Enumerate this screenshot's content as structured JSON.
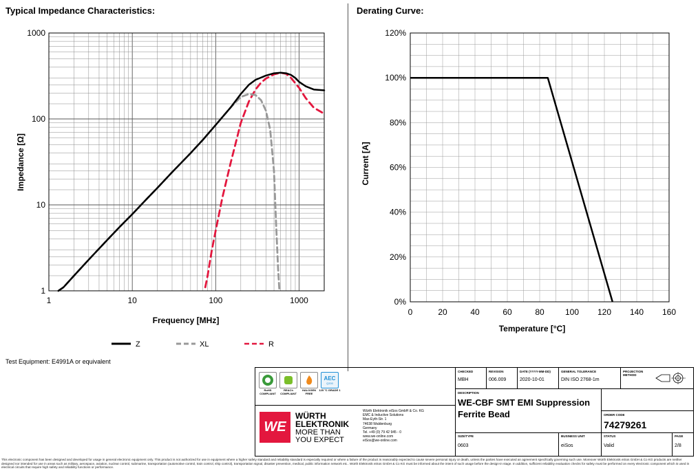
{
  "left_section": {
    "title": "Typical Impedance Characteristics:"
  },
  "right_section": {
    "title": "Derating Curve:"
  },
  "test_equipment": "Test Equipment: E4991A or equivalent",
  "chart_data": [
    {
      "type": "line",
      "title": "Typical Impedance Characteristics:",
      "xlabel": "Frequency [MHz]",
      "ylabel": "Impedance [Ω]",
      "xscale": "log",
      "yscale": "log",
      "xlim": [
        1,
        2000
      ],
      "ylim": [
        1,
        1000
      ],
      "x_tick_labels": [
        "1",
        "10",
        "100",
        "1000"
      ],
      "y_tick_labels": [
        "1",
        "10",
        "100",
        "1000"
      ],
      "grid": true,
      "legend_placement": "bottom",
      "series": [
        {
          "name": "Z",
          "color": "#000000",
          "style": "solid",
          "x": [
            1.3,
            1.5,
            2,
            3,
            5,
            7,
            10,
            15,
            20,
            30,
            50,
            70,
            100,
            150,
            200,
            250,
            300,
            400,
            500,
            600,
            700,
            800,
            900,
            1000,
            1200,
            1500,
            2000
          ],
          "y": [
            1,
            1.1,
            1.5,
            2.3,
            3.9,
            5.5,
            7.8,
            11.8,
            15.8,
            24,
            40,
            57,
            85,
            135,
            195,
            250,
            285,
            320,
            340,
            345,
            340,
            325,
            300,
            270,
            240,
            220,
            215
          ]
        },
        {
          "name": "XL",
          "color": "#999999",
          "style": "dashed",
          "x": [
            1.3,
            1.5,
            2,
            3,
            5,
            7,
            10,
            15,
            20,
            30,
            50,
            70,
            100,
            150,
            200,
            250,
            300,
            350,
            400,
            450,
            500,
            530,
            560,
            580
          ],
          "y": [
            1,
            1.1,
            1.5,
            2.3,
            3.9,
            5.5,
            7.8,
            11.8,
            15.8,
            24,
            40,
            57,
            85,
            135,
            180,
            195,
            190,
            165,
            125,
            75,
            25,
            6,
            1.8,
            1
          ]
        },
        {
          "name": "R",
          "color": "#e3173e",
          "style": "dashed",
          "x": [
            75,
            80,
            90,
            100,
            120,
            150,
            180,
            200,
            250,
            300,
            350,
            400,
            500,
            600,
            700,
            800,
            1000,
            1200,
            1500,
            2000
          ],
          "y": [
            1.1,
            1.5,
            3,
            5,
            12,
            30,
            60,
            90,
            160,
            220,
            265,
            295,
            330,
            345,
            335,
            300,
            230,
            175,
            135,
            115
          ]
        }
      ]
    },
    {
      "type": "line",
      "title": "Derating Curve:",
      "xlabel": "Temperature [°C]",
      "ylabel": "Current [A]",
      "xlim": [
        0,
        160
      ],
      "ylim": [
        0,
        120
      ],
      "x_tick_labels": [
        "0",
        "20",
        "40",
        "60",
        "80",
        "100",
        "120",
        "140",
        "160"
      ],
      "y_tick_labels": [
        "0%",
        "20%",
        "40%",
        "60%",
        "80%",
        "100%",
        "120%"
      ],
      "grid": true,
      "series": [
        {
          "x": [
            0,
            85,
            125
          ],
          "y": [
            100,
            100,
            0
          ],
          "color": "#000000",
          "style": "solid"
        }
      ]
    }
  ],
  "title_block": {
    "badges": [
      {
        "label": "RoHS",
        "sub": "COMPLIANT",
        "color": "#3a9a3a"
      },
      {
        "label": "REACh",
        "sub": "COMPLIANT",
        "color": "#7bbf2a"
      },
      {
        "label": "HALOGEN",
        "sub": "FREE",
        "color": "#f08a1c"
      },
      {
        "label": "AEC",
        "sub": "125 °C GRADE 1",
        "top": "AEC",
        "mid": "Q200",
        "color": "#1f8fd6"
      }
    ],
    "logo": {
      "brand": "WÜRTH",
      "brand2": "ELEKTRONIK",
      "slogan1": "MORE THAN",
      "slogan2": "YOU EXPECT",
      "mark": "WE"
    },
    "address": [
      "Würth Elektronik eiSos GmbH & Co. KG",
      "EMC & Inductive Solutions",
      "Max-Eyth-Str. 1",
      "74638 Waldenburg",
      "Germany",
      "Tel. +49 (0) 79 42 945 - 0",
      "www.we-online.com",
      "eiSos@we-online.com"
    ],
    "checked_label": "CHECKED",
    "checked": "MBH",
    "revision_label": "REVISION",
    "revision": "006.009",
    "date_label": "DATE (YYYY-MM-DD)",
    "date": "2020-10-01",
    "tolerance_label": "GENERAL TOLERANCE",
    "tolerance": "DIN ISO 2768-1m",
    "projection_label": "PROJECTION METHOD",
    "description_label": "DESCRIPTION",
    "description1": "WE-CBF SMT EMI Suppression",
    "description2": "Ferrite Bead",
    "order_code_label": "ORDER CODE",
    "order_code": "74279261",
    "size_label": "SIZE/TYPE",
    "size": "0603",
    "business_unit_label": "BUSINESS UNIT",
    "business_unit": "eiSos",
    "status_label": "STATUS",
    "status": "Valid",
    "page_label": "PAGE",
    "page": "2/8"
  },
  "disclaimer": "This electronic component has been designed and developed for usage in general electronic equipment only. This product is not authorized for use in equipment where a higher safety standard and reliability standard is especially required or where a failure of the product is reasonably expected to cause severe personal injury or death, unless the parties have executed an agreement specifically governing such use. Moreover Würth Elektronik eiSos GmbH & Co KG products are neither designed nor intended for use in areas such as military, aerospace, aviation, nuclear control, submarine, transportation (automotive control, train control, ship control), transportation signal, disaster prevention, medical, public information network etc.. Würth Elektronik eiSos GmbH & Co KG must be informed about the intent of such usage before the design-in stage. In addition, sufficient reliability evaluation checks for safety must be performed on every electronic component which is used in electrical circuits that require high safety and reliability functions or performance."
}
